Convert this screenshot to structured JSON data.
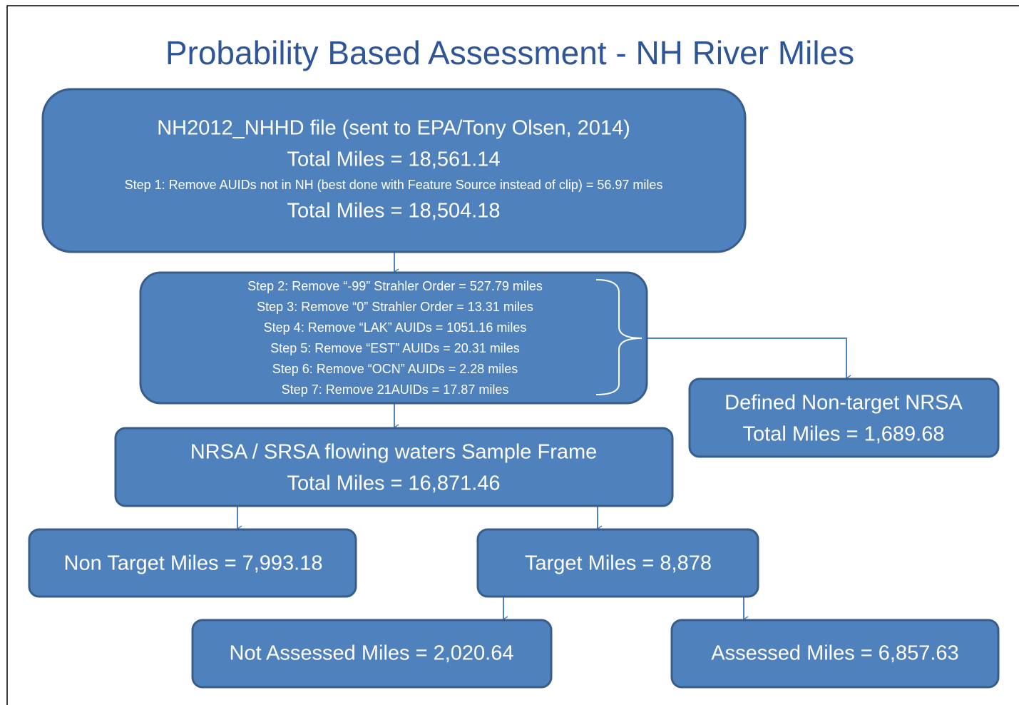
{
  "title": "Probability Based Assessment - NH River Miles",
  "nodes": [
    {
      "lines": [
        "NH2012_NHHD  file (sent to EPA/Tony Olsen, 2014)",
        "Total Miles = 18,561.14",
        "Step 1: Remove AUIDs not in NH (best done with Feature Source instead of clip) = 56.97 miles",
        "Total Miles = 18,504.18"
      ]
    },
    {
      "lines": [
        "Step 2: Remove “-99” Strahler Order = 527.79 miles",
        "Step 3: Remove “0” Strahler Order = 13.31 miles",
        "Step 4: Remove “LAK” AUIDs = 1051.16 miles",
        "Step 5: Remove “EST” AUIDs = 20.31 miles",
        "Step 6: Remove “OCN” AUIDs = 2.28 miles",
        "Step 7: Remove 21AUIDs = 17.87 miles"
      ]
    },
    {
      "lines": [
        "Defined Non-target NRSA",
        "Total Miles = 1,689.68"
      ]
    },
    {
      "lines": [
        "NRSA / SRSA  flowing waters Sample Frame",
        "Total Miles = 16,871.46"
      ]
    },
    {
      "lines": [
        "Non Target Miles = 7,993.18"
      ]
    },
    {
      "lines": [
        "Target Miles = 8,878"
      ]
    },
    {
      "lines": [
        "Not Assessed Miles = 2,020.64"
      ]
    },
    {
      "lines": [
        "Assessed Miles = 6,857.63"
      ]
    }
  ]
}
